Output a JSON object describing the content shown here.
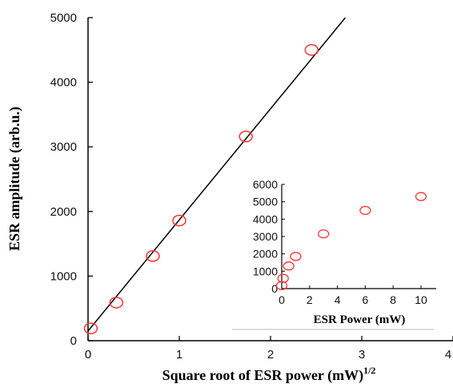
{
  "chart_data": [
    {
      "type": "scatter",
      "xlabel": "Square root of ESR power (mW)",
      "xlabel_sup": "1/2",
      "ylabel": "ESR amplitude (arb.u.)",
      "xlim": [
        0,
        4
      ],
      "ylim": [
        0,
        5000
      ],
      "xticks": [
        "0",
        "1",
        "2",
        "3",
        "4"
      ],
      "yticks": [
        "0",
        "1000",
        "2000",
        "3000",
        "4000",
        "5000"
      ],
      "marker_color": "#ff3333",
      "line_color": "#000000",
      "points": [
        {
          "x": 0.03,
          "y": 190
        },
        {
          "x": 0.31,
          "y": 590
        },
        {
          "x": 0.71,
          "y": 1310
        },
        {
          "x": 1.0,
          "y": 1860
        },
        {
          "x": 1.73,
          "y": 3160
        },
        {
          "x": 2.45,
          "y": 4500
        }
      ],
      "fit_line": {
        "x": [
          0,
          2.82
        ],
        "y": [
          150,
          5000
        ]
      }
    },
    {
      "type": "scatter",
      "xlabel": "ESR Power (mW)",
      "ylabel": "",
      "xlim": [
        0,
        10
      ],
      "ylim": [
        0,
        6000
      ],
      "xticks": [
        "0",
        "2",
        "4",
        "6",
        "8",
        "10"
      ],
      "yticks": [
        "0",
        "1000",
        "2000",
        "3000",
        "4000",
        "5000",
        "6000"
      ],
      "marker_color": "#ff3333",
      "points": [
        {
          "x": 0.0,
          "y": 170
        },
        {
          "x": 0.1,
          "y": 590
        },
        {
          "x": 0.5,
          "y": 1300
        },
        {
          "x": 1.0,
          "y": 1850
        },
        {
          "x": 3.0,
          "y": 3150
        },
        {
          "x": 6.0,
          "y": 4500
        },
        {
          "x": 10.0,
          "y": 5300
        }
      ]
    }
  ]
}
